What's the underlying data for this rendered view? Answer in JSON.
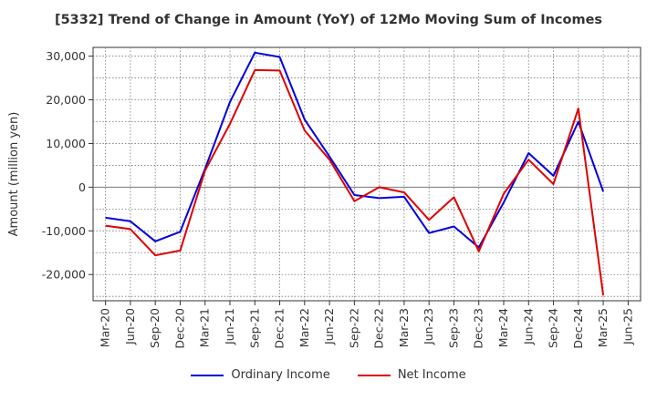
{
  "colors": {
    "ordinary": "#0000dd",
    "net": "#dd0000",
    "grid": "#777777",
    "zero": "#777777"
  },
  "chart_data": {
    "type": "line",
    "title": "[5332]  Trend of Change in Amount (YoY) of 12Mo Moving Sum of Incomes",
    "ylabel": "Amount (million yen)",
    "xlabel": "",
    "ylim": [
      -26000,
      32000
    ],
    "yticks": [
      30000,
      20000,
      10000,
      0,
      -10000,
      -20000
    ],
    "ytick_labels": [
      "30,000",
      "20,000",
      "10,000",
      "0",
      "-10,000",
      "-20,000"
    ],
    "categories": [
      "Mar-20",
      "Jun-20",
      "Sep-20",
      "Dec-20",
      "Mar-21",
      "Jun-21",
      "Sep-21",
      "Dec-21",
      "Mar-22",
      "Jun-22",
      "Sep-22",
      "Dec-22",
      "Mar-23",
      "Jun-23",
      "Sep-23",
      "Dec-23",
      "Mar-24",
      "Jun-24",
      "Sep-24",
      "Dec-24",
      "Mar-25",
      "Jun-25"
    ],
    "grid": true,
    "legend_position": "bottom",
    "series": [
      {
        "name": "Ordinary Income",
        "color": "#0000dd",
        "values": [
          -7000,
          -7800,
          -12400,
          -10200,
          4200,
          19500,
          30800,
          29800,
          15500,
          7000,
          -1800,
          -2500,
          -2200,
          -10500,
          -9000,
          -13800,
          -3500,
          7800,
          2600,
          15000,
          -1000,
          null
        ]
      },
      {
        "name": "Net Income",
        "color": "#dd0000",
        "values": [
          -8800,
          -9600,
          -15600,
          -14500,
          3800,
          14500,
          26800,
          26700,
          13000,
          6300,
          -3200,
          0,
          -1200,
          -7500,
          -2300,
          -14700,
          -1500,
          6300,
          700,
          18000,
          -24800,
          null
        ]
      }
    ]
  }
}
